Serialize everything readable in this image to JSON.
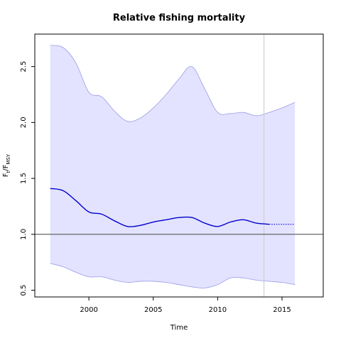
{
  "chart_data": {
    "type": "line",
    "title": "Relative fishing mortality",
    "xlabel": "Time",
    "ylabel": {
      "main": "F",
      "sub1": "t",
      "sep": "/F",
      "sub2": "MSY"
    },
    "xlim": [
      1995.8,
      2018.2
    ],
    "ylim": [
      0.44,
      2.79
    ],
    "xticks": [
      2000,
      2005,
      2010,
      2015
    ],
    "yticks": [
      0.5,
      1.0,
      1.5,
      2.0,
      2.5
    ],
    "grid": false,
    "reference_line": 1.0,
    "vertical_marker": 2013.6,
    "colors": {
      "estimate": "#0000cc",
      "ci_fill": "#e3e3ff",
      "ci_border": "#9a9ae8",
      "reference": "#555555",
      "vertical_marker": "#c8c8c8"
    },
    "series": [
      {
        "role": "estimate",
        "x": [
          1997,
          1998,
          1999,
          2000,
          2001,
          2002,
          2003,
          2004,
          2005,
          2006,
          2007,
          2008,
          2009,
          2010,
          2011,
          2012,
          2013,
          2014
        ],
        "values": [
          1.41,
          1.39,
          1.3,
          1.2,
          1.18,
          1.12,
          1.07,
          1.08,
          1.11,
          1.13,
          1.15,
          1.15,
          1.1,
          1.07,
          1.11,
          1.13,
          1.1,
          1.09
        ]
      },
      {
        "role": "forecast",
        "x": [
          2014,
          2015,
          2016
        ],
        "values": [
          1.09,
          1.09,
          1.09
        ]
      },
      {
        "role": "upper_ci",
        "x": [
          1997,
          1998,
          1999,
          2000,
          2001,
          2002,
          2003,
          2004,
          2005,
          2006,
          2007,
          2008,
          2009,
          2010,
          2011,
          2012,
          2013,
          2014,
          2015,
          2016
        ],
        "values": [
          2.69,
          2.67,
          2.53,
          2.27,
          2.23,
          2.1,
          2.01,
          2.04,
          2.13,
          2.25,
          2.39,
          2.5,
          2.3,
          2.09,
          2.08,
          2.09,
          2.06,
          2.09,
          2.13,
          2.18
        ]
      },
      {
        "role": "lower_ci",
        "x": [
          1997,
          1998,
          1999,
          2000,
          2001,
          2002,
          2003,
          2004,
          2005,
          2006,
          2007,
          2008,
          2009,
          2010,
          2011,
          2012,
          2013,
          2014,
          2015,
          2016
        ],
        "values": [
          0.74,
          0.71,
          0.66,
          0.62,
          0.62,
          0.59,
          0.57,
          0.58,
          0.58,
          0.57,
          0.55,
          0.53,
          0.52,
          0.55,
          0.61,
          0.61,
          0.59,
          0.58,
          0.57,
          0.55
        ]
      }
    ]
  }
}
